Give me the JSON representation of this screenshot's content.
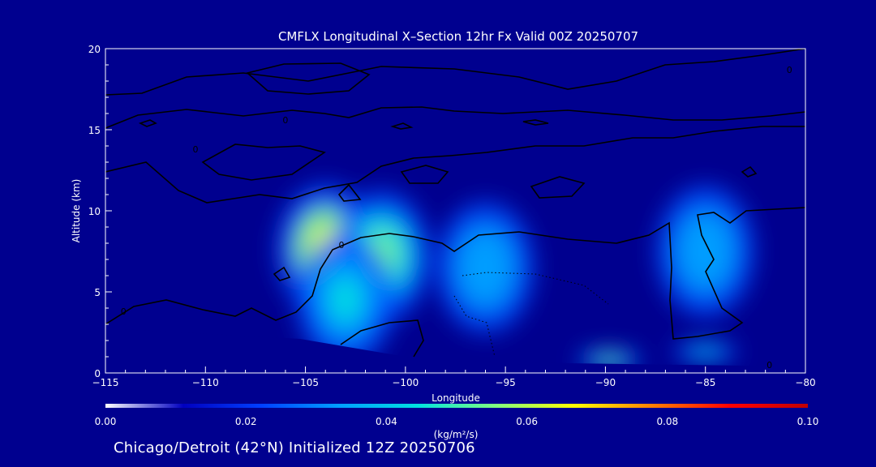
{
  "chart_data": {
    "type": "heatmap",
    "title": "CMFLX Longitudinal X–Section 12hr  Fx Valid 00Z 20250707",
    "xlabel": "Longitude",
    "ylabel": "Altitude (km)",
    "xlim": [
      -115,
      -80
    ],
    "ylim": [
      0,
      20
    ],
    "x_ticks": [
      -115,
      -110,
      -105,
      -100,
      -95,
      -90,
      -85,
      -80
    ],
    "x_tick_labels": [
      "−115",
      "−110",
      "−105",
      "−100",
      "−95",
      "−90",
      "−85",
      "−80"
    ],
    "y_ticks": [
      0,
      5,
      10,
      15,
      20
    ],
    "y_tick_labels": [
      "0",
      "5",
      "10",
      "15",
      "20"
    ],
    "colorbar": {
      "min": 0.0,
      "max": 0.1,
      "tick_values": [
        0.0,
        0.02,
        0.04,
        0.06,
        0.08,
        0.1
      ],
      "tick_labels": [
        "0.00",
        "0.02",
        "0.04",
        "0.06",
        "0.08",
        "0.10"
      ],
      "unit_label": "(kg/m²/s)",
      "colors": [
        "#ffffff",
        "#0000c0",
        "#0040ff",
        "#00a0ff",
        "#00e0e0",
        "#80ff80",
        "#ffff00",
        "#ff8000",
        "#ff0000",
        "#c00000"
      ]
    },
    "background_color": "#00008f",
    "field_peak_color": "#ffff40",
    "plumes": [
      {
        "lon": -104.0,
        "alt": 7.6,
        "value": 0.058
      },
      {
        "lon": -101.2,
        "alt": 7.2,
        "value": 0.05
      },
      {
        "lon": -103.0,
        "alt": 4.5,
        "value": 0.035
      },
      {
        "lon": -96.0,
        "alt": 6.5,
        "value": 0.03
      },
      {
        "lon": -89.8,
        "alt": 0.8,
        "value": 0.045
      },
      {
        "lon": -85.0,
        "alt": 1.3,
        "value": 0.04
      },
      {
        "lon": -85.0,
        "alt": 7.5,
        "value": 0.028
      }
    ],
    "contour_labels": [
      {
        "lon": -103.2,
        "alt": 7.9,
        "text": "0"
      },
      {
        "lon": -114.1,
        "alt": 3.8,
        "text": "0"
      },
      {
        "lon": -110.5,
        "alt": 13.8,
        "text": "0"
      },
      {
        "lon": -106.0,
        "alt": 15.6,
        "text": "0"
      },
      {
        "lon": -80.8,
        "alt": 18.7,
        "text": "0"
      },
      {
        "lon": -81.8,
        "alt": 0.5,
        "text": "0"
      }
    ]
  },
  "footer": {
    "text": "Chicago/Detroit (42°N) Initialized 12Z 20250706"
  }
}
